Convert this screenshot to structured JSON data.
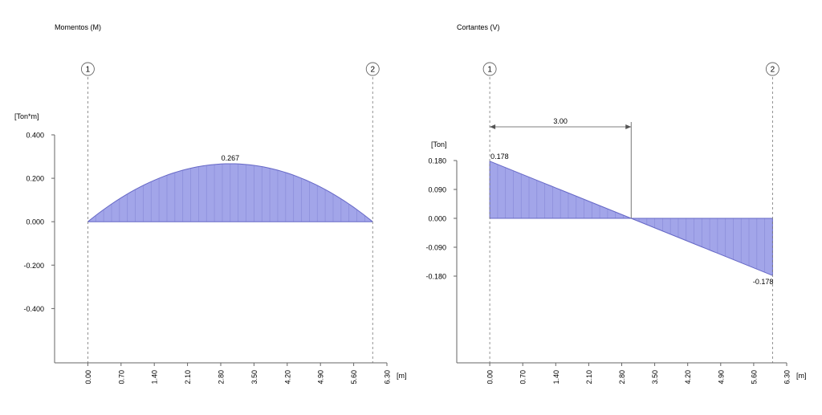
{
  "chart_data": [
    {
      "type": "area",
      "title": "Momentos (M)",
      "ylabel": "[Ton*m]",
      "xlabel": "[m]",
      "ylim": [
        -0.65,
        0.4
      ],
      "xlim": [
        -0.7,
        6.3
      ],
      "y_ticks": [
        "0.400",
        "0.200",
        "0.000",
        "-0.200",
        "-0.400"
      ],
      "y_tick_values": [
        0.4,
        0.2,
        0.0,
        -0.2,
        -0.4
      ],
      "x_ticks": [
        "0.00",
        "0.70",
        "1.40",
        "2.10",
        "2.80",
        "3.50",
        "4.20",
        "4.90",
        "5.60",
        "6.30"
      ],
      "x_tick_values": [
        0,
        0.7,
        1.4,
        2.1,
        2.8,
        3.5,
        4.2,
        4.9,
        5.6,
        6.3
      ],
      "supports": [
        {
          "label": "1",
          "x": 0
        },
        {
          "label": "2",
          "x": 6.0
        }
      ],
      "series": [
        {
          "curve": "parabola",
          "x": [
            0,
            3.0,
            6.0
          ],
          "y": [
            0,
            0.267,
            0
          ]
        }
      ],
      "annotations": [
        {
          "text": "0.267",
          "x": 3.0,
          "y": 0.267
        }
      ],
      "dimension": null,
      "fill_color": "#a2a5e9",
      "edge_color": "#6668c6",
      "hatch_color": "#8486d6"
    },
    {
      "type": "area",
      "title": "Cortantes (V)",
      "ylabel": "[Ton]",
      "xlabel": "[m]",
      "ylim": [
        -0.45,
        0.18
      ],
      "xlim": [
        -0.7,
        6.3
      ],
      "y_ticks": [
        "0.180",
        "0.090",
        "0.000",
        "-0.090",
        "-0.180"
      ],
      "y_tick_values": [
        0.18,
        0.09,
        0.0,
        -0.09,
        -0.18
      ],
      "x_ticks": [
        "0.00",
        "0.70",
        "1.40",
        "2.10",
        "2.80",
        "3.50",
        "4.20",
        "4.90",
        "5.60",
        "6.30"
      ],
      "x_tick_values": [
        0,
        0.7,
        1.4,
        2.1,
        2.8,
        3.5,
        4.2,
        4.9,
        5.6,
        6.3
      ],
      "supports": [
        {
          "label": "1",
          "x": 0
        },
        {
          "label": "2",
          "x": 6.0
        }
      ],
      "series": [
        {
          "curve": "linear",
          "x": [
            0,
            3.0,
            6.0
          ],
          "y": [
            0.178,
            0,
            -0.178
          ]
        }
      ],
      "annotations": [
        {
          "text": "0.178",
          "x": 0,
          "y": 0.178
        },
        {
          "text": "-0.178",
          "x": 6.0,
          "y": -0.178
        }
      ],
      "dimension": {
        "text": "3.00",
        "from": 0,
        "to": 3.0
      },
      "fill_color": "#a2a5e9",
      "edge_color": "#6668c6",
      "hatch_color": "#8486d6"
    }
  ]
}
